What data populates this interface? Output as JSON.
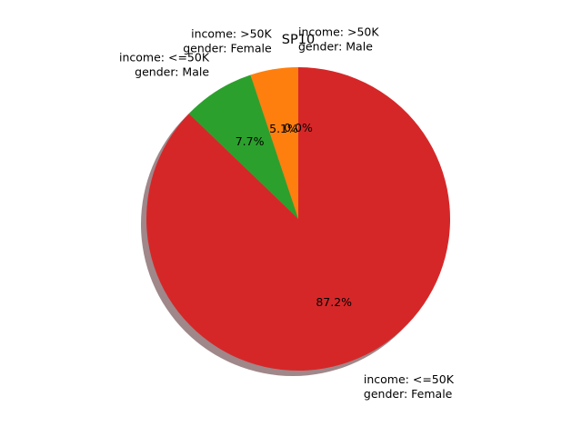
{
  "chart_data": {
    "type": "pie",
    "title": "SP10",
    "shadow": true,
    "start_angle_deg": 90,
    "direction": "counterclockwise",
    "slices": [
      {
        "label_lines": [
          "income: >50K",
          "gender: Male"
        ],
        "value": 0.0,
        "pct_label": "0.0%",
        "color": "#1f77b4"
      },
      {
        "label_lines": [
          "income: >50K",
          "gender: Female"
        ],
        "value": 5.1,
        "pct_label": "5.1%",
        "color": "#ff7f0e"
      },
      {
        "label_lines": [
          "income: <=50K",
          "gender: Male"
        ],
        "value": 7.7,
        "pct_label": "7.7%",
        "color": "#2ca02c"
      },
      {
        "label_lines": [
          "income: <=50K",
          "gender: Female"
        ],
        "value": 87.2,
        "pct_label": "87.2%",
        "color": "#d62728"
      }
    ],
    "shadow_color": "#7f5f63"
  }
}
